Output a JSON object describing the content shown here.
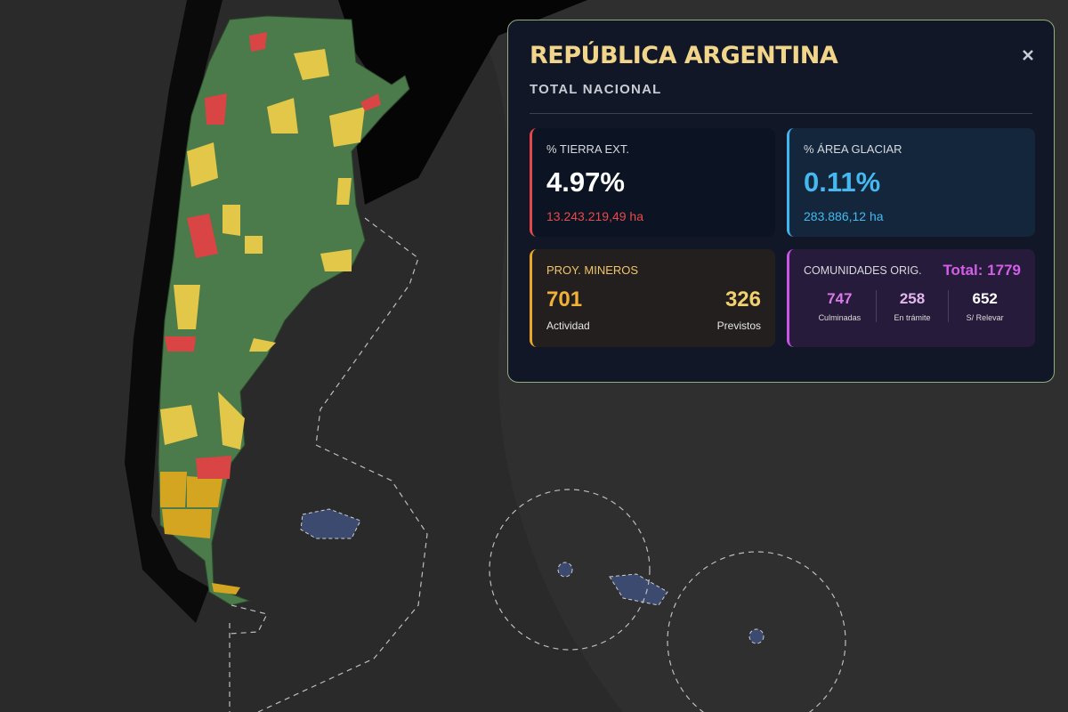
{
  "panel": {
    "title": "REPÚBLICA ARGENTINA",
    "subtitle": "TOTAL NACIONAL",
    "tierra": {
      "label": "% TIERRA EXT.",
      "value": "4.97%",
      "detail": "13.243.219,49 ha"
    },
    "glaciar": {
      "label": "% ÁREA GLACIAR",
      "value": "0.11%",
      "detail": "283.886,12 ha"
    },
    "mineros": {
      "label": "PROY. MINEROS",
      "items": [
        {
          "value": "701",
          "label": "Actividad"
        },
        {
          "value": "326",
          "label": "Previstos"
        }
      ]
    },
    "comunidades": {
      "label": "COMUNIDADES ORIG.",
      "total": "Total: 1779",
      "items": [
        {
          "value": "747",
          "label": "Culminadas"
        },
        {
          "value": "258",
          "label": "En trámite"
        },
        {
          "value": "652",
          "label": "S/ Relevar"
        }
      ]
    }
  }
}
